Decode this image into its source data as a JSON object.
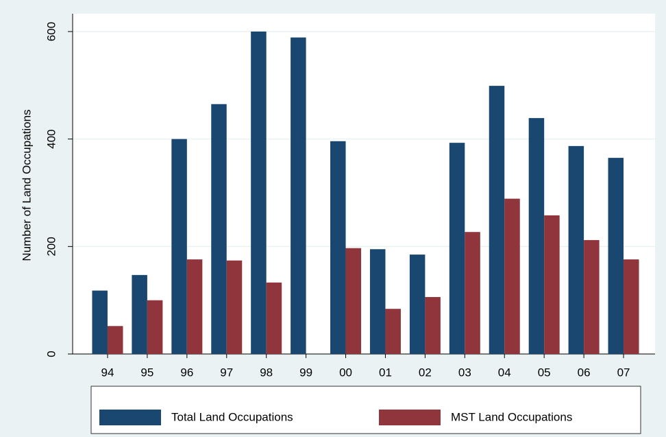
{
  "chart_data": {
    "type": "bar",
    "ylabel": "Number of Land Occupations",
    "categories": [
      "94",
      "95",
      "96",
      "97",
      "98",
      "99",
      "00",
      "01",
      "02",
      "03",
      "04",
      "05",
      "06",
      "07"
    ],
    "series": [
      {
        "name": "Total Land Occupations",
        "color": "#1a476f",
        "values": [
          118,
          147,
          400,
          465,
          600,
          589,
          396,
          195,
          185,
          393,
          499,
          439,
          387,
          365
        ]
      },
      {
        "name": "MST Land Occupations",
        "color": "#90353b",
        "values": [
          52,
          100,
          176,
          174,
          133,
          null,
          197,
          84,
          106,
          227,
          289,
          258,
          212,
          176
        ]
      }
    ],
    "ylim": [
      0,
      600
    ],
    "yticks": [
      0,
      200,
      400,
      600
    ],
    "grid": true,
    "legend": "bottom"
  }
}
